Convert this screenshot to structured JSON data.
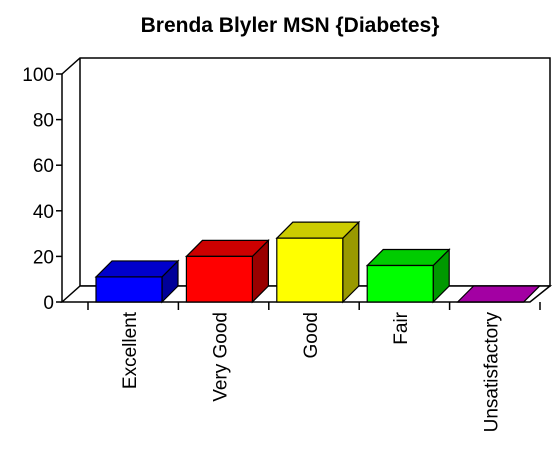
{
  "chart_data": {
    "type": "bar3d",
    "title": "Brenda Blyler MSN {Diabetes}",
    "categories": [
      "Excellent",
      "Very Good",
      "Good",
      "Fair",
      "Unsatisfactory"
    ],
    "values": [
      11,
      20,
      28,
      16,
      0
    ],
    "colors": [
      "#0000ff",
      "#ff0000",
      "#ffff00",
      "#00ff00",
      "#cc00cc"
    ],
    "ylim": [
      0,
      100
    ],
    "yticks": [
      0,
      20,
      40,
      60,
      80,
      100
    ]
  }
}
